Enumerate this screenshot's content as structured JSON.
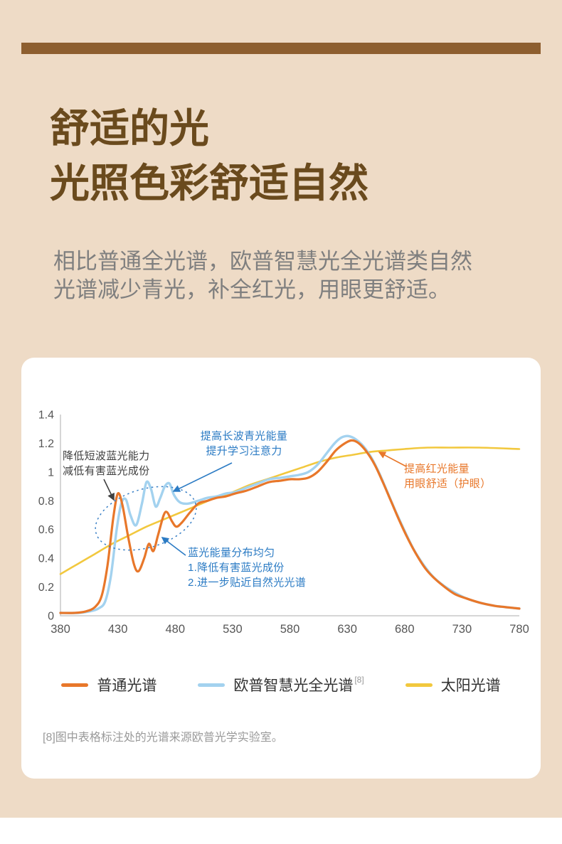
{
  "colors": {
    "background": "#eedbc6",
    "accent_bar": "#8d5e2f",
    "title": "#6a4a1d",
    "subtitle": "#7f7f7f",
    "card": "#ffffff"
  },
  "header": {
    "title_line1": "舒适的光",
    "title_line2": "光照色彩舒适自然",
    "subtitle_line1": "相比普通全光谱，欧普智慧光全光谱类自然",
    "subtitle_line2": "光谱减少青光，补全红光，用眼更舒适。"
  },
  "footnote": "[8]图中表格标注处的光谱来源欧普光学实验室。",
  "chart_data": {
    "type": "line",
    "xlim": [
      380,
      780
    ],
    "ylim": [
      0,
      1.4
    ],
    "x_ticks": [
      380,
      430,
      480,
      530,
      580,
      630,
      680,
      730,
      780
    ],
    "y_ticks": [
      0,
      0.2,
      0.4,
      0.6,
      0.8,
      1,
      1.2,
      1.4
    ],
    "grid": false,
    "legend_position": "bottom",
    "axis_color": "#c9c9c9",
    "tick_color": "#565656",
    "series": [
      {
        "key": "normal-spectrum",
        "name": "普通光谱",
        "color": "#e8772a",
        "stroke_width": 3.2,
        "points": [
          [
            380,
            0.02
          ],
          [
            392,
            0.02
          ],
          [
            402,
            0.03
          ],
          [
            410,
            0.06
          ],
          [
            416,
            0.14
          ],
          [
            421,
            0.35
          ],
          [
            426,
            0.68
          ],
          [
            430,
            0.85
          ],
          [
            434,
            0.77
          ],
          [
            439,
            0.55
          ],
          [
            444,
            0.36
          ],
          [
            448,
            0.31
          ],
          [
            453,
            0.4
          ],
          [
            457,
            0.5
          ],
          [
            461,
            0.45
          ],
          [
            465,
            0.56
          ],
          [
            470,
            0.7
          ],
          [
            473,
            0.72
          ],
          [
            477,
            0.66
          ],
          [
            481,
            0.62
          ],
          [
            486,
            0.65
          ],
          [
            493,
            0.72
          ],
          [
            500,
            0.78
          ],
          [
            508,
            0.8
          ],
          [
            516,
            0.82
          ],
          [
            524,
            0.83
          ],
          [
            532,
            0.85
          ],
          [
            542,
            0.87
          ],
          [
            552,
            0.9
          ],
          [
            562,
            0.93
          ],
          [
            572,
            0.94
          ],
          [
            580,
            0.95
          ],
          [
            588,
            0.95
          ],
          [
            596,
            0.96
          ],
          [
            604,
            1.0
          ],
          [
            612,
            1.07
          ],
          [
            620,
            1.15
          ],
          [
            628,
            1.2
          ],
          [
            634,
            1.22
          ],
          [
            640,
            1.2
          ],
          [
            647,
            1.14
          ],
          [
            654,
            1.05
          ],
          [
            661,
            0.93
          ],
          [
            668,
            0.8
          ],
          [
            675,
            0.67
          ],
          [
            682,
            0.55
          ],
          [
            690,
            0.43
          ],
          [
            698,
            0.33
          ],
          [
            706,
            0.26
          ],
          [
            715,
            0.2
          ],
          [
            724,
            0.15
          ],
          [
            734,
            0.12
          ],
          [
            746,
            0.09
          ],
          [
            758,
            0.07
          ],
          [
            768,
            0.06
          ],
          [
            780,
            0.05
          ]
        ]
      },
      {
        "key": "opple-full-spectrum",
        "name": "欧普智慧光全光谱",
        "superscript": "[8]",
        "color": "#a3d2ef",
        "stroke_width": 3.4,
        "points": [
          [
            380,
            0.02
          ],
          [
            395,
            0.02
          ],
          [
            405,
            0.03
          ],
          [
            413,
            0.05
          ],
          [
            419,
            0.1
          ],
          [
            424,
            0.28
          ],
          [
            429,
            0.6
          ],
          [
            433,
            0.78
          ],
          [
            437,
            0.81
          ],
          [
            441,
            0.7
          ],
          [
            446,
            0.63
          ],
          [
            451,
            0.78
          ],
          [
            455,
            0.93
          ],
          [
            459,
            0.88
          ],
          [
            463,
            0.76
          ],
          [
            467,
            0.82
          ],
          [
            471,
            0.9
          ],
          [
            475,
            0.92
          ],
          [
            479,
            0.84
          ],
          [
            484,
            0.79
          ],
          [
            491,
            0.78
          ],
          [
            500,
            0.8
          ],
          [
            508,
            0.82
          ],
          [
            516,
            0.83
          ],
          [
            524,
            0.85
          ],
          [
            532,
            0.86
          ],
          [
            542,
            0.89
          ],
          [
            552,
            0.92
          ],
          [
            562,
            0.95
          ],
          [
            572,
            0.96
          ],
          [
            580,
            0.97
          ],
          [
            588,
            0.98
          ],
          [
            596,
            1.0
          ],
          [
            604,
            1.05
          ],
          [
            612,
            1.13
          ],
          [
            619,
            1.2
          ],
          [
            625,
            1.24
          ],
          [
            631,
            1.25
          ],
          [
            637,
            1.23
          ],
          [
            644,
            1.18
          ],
          [
            651,
            1.1
          ],
          [
            658,
            0.99
          ],
          [
            665,
            0.86
          ],
          [
            672,
            0.73
          ],
          [
            680,
            0.59
          ],
          [
            688,
            0.46
          ],
          [
            696,
            0.36
          ],
          [
            705,
            0.27
          ],
          [
            714,
            0.21
          ],
          [
            724,
            0.16
          ],
          [
            734,
            0.12
          ],
          [
            746,
            0.09
          ],
          [
            758,
            0.07
          ],
          [
            768,
            0.06
          ],
          [
            780,
            0.05
          ]
        ]
      },
      {
        "key": "sun-spectrum",
        "name": "太阳光谱",
        "color": "#f2c83e",
        "stroke_width": 2.6,
        "points": [
          [
            380,
            0.29
          ],
          [
            395,
            0.36
          ],
          [
            410,
            0.43
          ],
          [
            425,
            0.5
          ],
          [
            440,
            0.56
          ],
          [
            455,
            0.62
          ],
          [
            470,
            0.67
          ],
          [
            485,
            0.72
          ],
          [
            500,
            0.77
          ],
          [
            515,
            0.82
          ],
          [
            530,
            0.86
          ],
          [
            545,
            0.91
          ],
          [
            560,
            0.95
          ],
          [
            575,
            0.99
          ],
          [
            590,
            1.03
          ],
          [
            605,
            1.07
          ],
          [
            620,
            1.1
          ],
          [
            635,
            1.12
          ],
          [
            650,
            1.14
          ],
          [
            665,
            1.15
          ],
          [
            680,
            1.16
          ],
          [
            700,
            1.17
          ],
          [
            720,
            1.17
          ],
          [
            745,
            1.17
          ],
          [
            780,
            1.16
          ]
        ]
      }
    ],
    "annotations": [
      {
        "id": "reduce-shortwave-blue",
        "color": "#404040",
        "lines": [
          "降低短波蓝光能力",
          "减低有害蓝光成份"
        ]
      },
      {
        "id": "boost-longwave-cyan",
        "color": "#2b7bc4",
        "lines": [
          "提高长波青光能量",
          "提升学习注意力"
        ]
      },
      {
        "id": "blue-energy-distribution",
        "color": "#2b7bc4",
        "lines": [
          "蓝光能量分布均匀",
          "1.降低有害蓝光成份",
          "2.进一步贴近自然光光谱"
        ]
      },
      {
        "id": "boost-red",
        "color": "#e8772a",
        "lines": [
          "提高红光能量",
          "用眼舒适（护眼）"
        ]
      }
    ]
  }
}
